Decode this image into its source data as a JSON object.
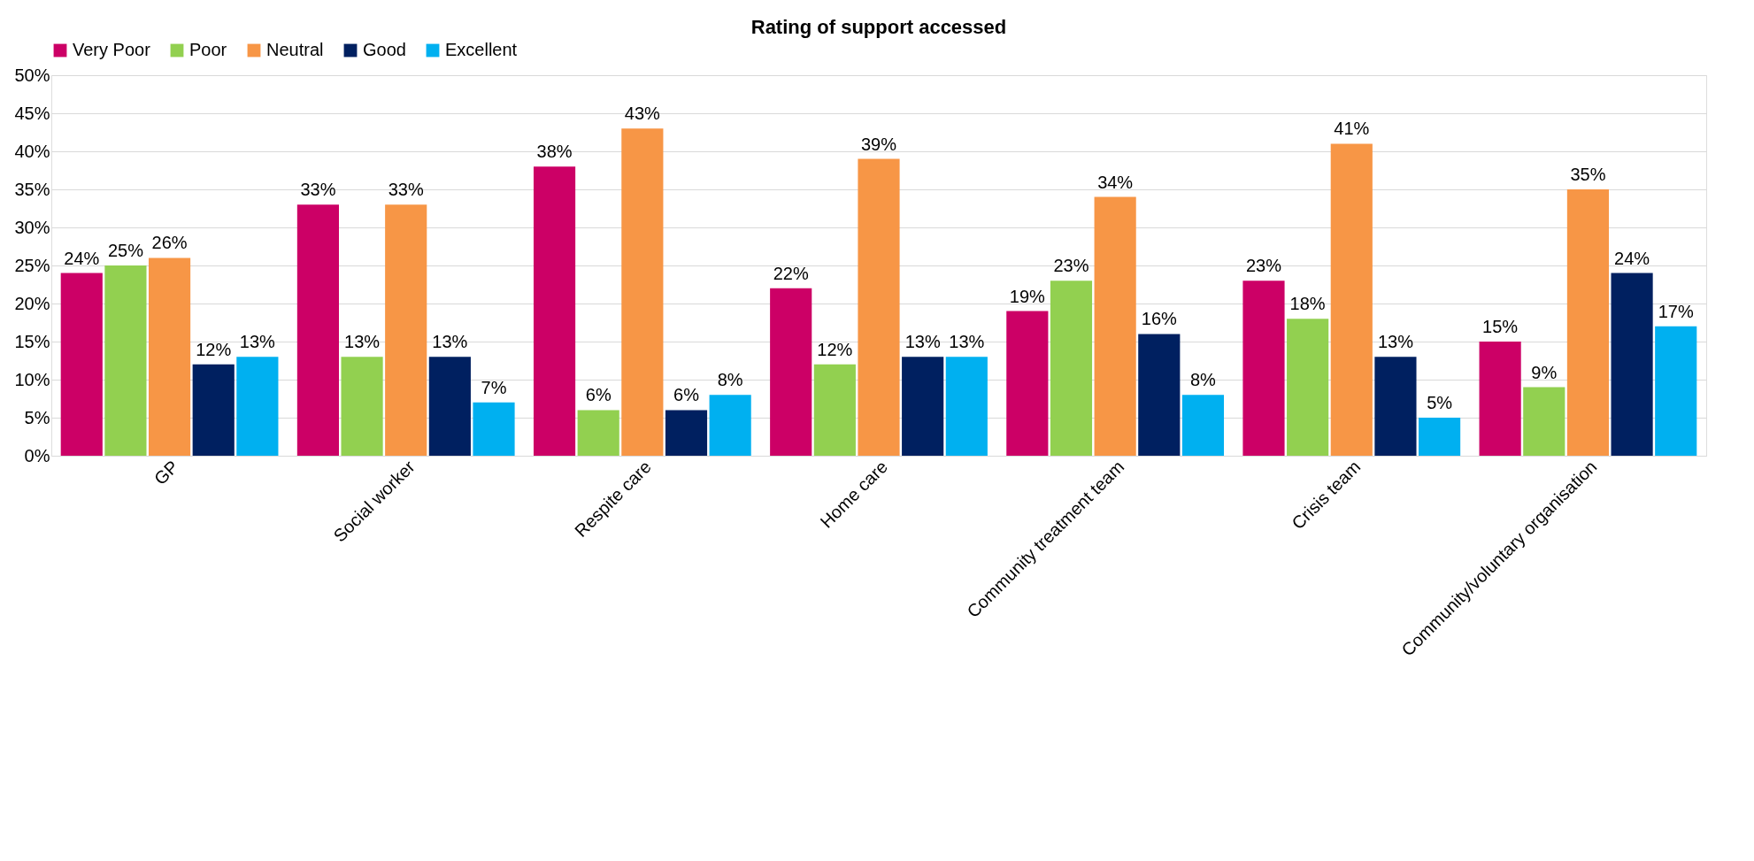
{
  "chart_data": {
    "type": "bar",
    "title": "Rating of support accessed",
    "categories": [
      "GP",
      "Social worker",
      "Respite care",
      "Home care",
      "Community treatment team",
      "Crisis team",
      "Community/voluntary organisation"
    ],
    "series": [
      {
        "name": "Very Poor",
        "color": "#cc0066",
        "values": [
          24,
          33,
          38,
          22,
          19,
          23,
          15
        ],
        "value_labels": [
          "24%",
          "33%",
          "38%",
          "22%",
          "19%",
          "23%",
          "15%"
        ]
      },
      {
        "name": "Poor",
        "color": "#92d050",
        "values": [
          25,
          13,
          6,
          12,
          23,
          18,
          9
        ],
        "value_labels": [
          "25%",
          "13%",
          "6%",
          "12%",
          "23%",
          "18%",
          "9%"
        ]
      },
      {
        "name": "Neutral",
        "color": "#f79646",
        "values": [
          26,
          33,
          43,
          39,
          34,
          41,
          35
        ],
        "value_labels": [
          "26%",
          "33%",
          "43%",
          "39%",
          "34%",
          "41%",
          "35%"
        ]
      },
      {
        "name": "Good",
        "color": "#002060",
        "values": [
          12,
          13,
          6,
          13,
          16,
          13,
          24
        ],
        "value_labels": [
          "12%",
          "13%",
          "6%",
          "13%",
          "16%",
          "13%",
          "24%"
        ]
      },
      {
        "name": "Excellent",
        "color": "#00b0f0",
        "values": [
          13,
          7,
          8,
          13,
          8,
          5,
          17
        ],
        "value_labels": [
          "13%",
          "7%",
          "8%",
          "13%",
          "8%",
          "5%",
          "17%"
        ]
      }
    ],
    "ylim": [
      0,
      50
    ],
    "yticks": [
      {
        "value": 0,
        "label": "0%"
      },
      {
        "value": 5,
        "label": "5%"
      },
      {
        "value": 10,
        "label": "10%"
      },
      {
        "value": 15,
        "label": "15%"
      },
      {
        "value": 20,
        "label": "20%"
      },
      {
        "value": 25,
        "label": "25%"
      },
      {
        "value": 30,
        "label": "30%"
      },
      {
        "value": 35,
        "label": "35%"
      },
      {
        "value": 40,
        "label": "40%"
      },
      {
        "value": 45,
        "label": "45%"
      },
      {
        "value": 50,
        "label": "50%"
      }
    ],
    "grid": "y",
    "legend": "top"
  }
}
